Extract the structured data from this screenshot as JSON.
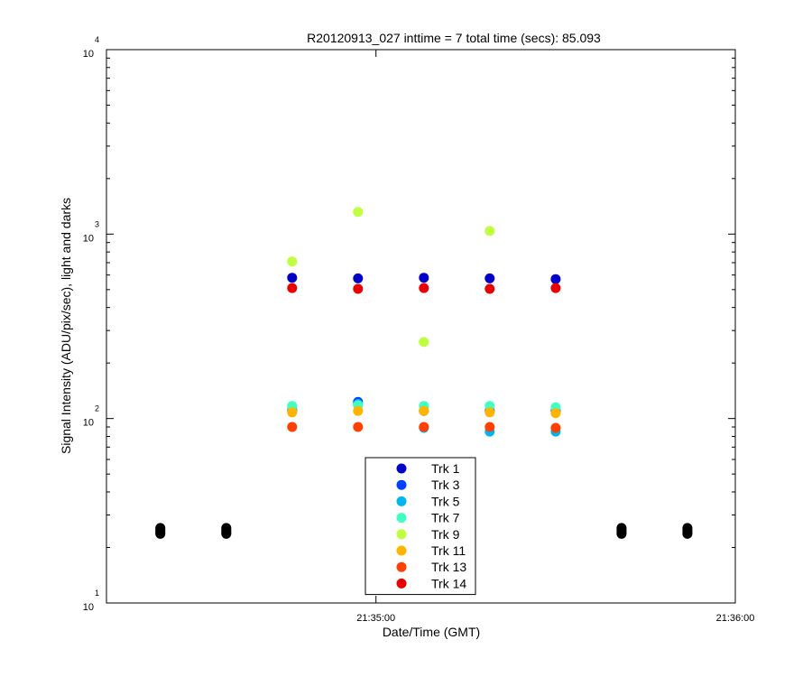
{
  "chart_data": {
    "type": "scatter",
    "title": "R20120913_027 inttime = 7 total time (secs): 85.093",
    "xlabel": "Date/Time (GMT)",
    "ylabel": "Signal Intensity (ADU/pix/sec), light and darks",
    "yscale": "log",
    "ylim": [
      10,
      10000
    ],
    "y_ticks": [
      {
        "base": "10",
        "exp": "1",
        "value": 10
      },
      {
        "base": "10",
        "exp": "2",
        "value": 100
      },
      {
        "base": "10",
        "exp": "3",
        "value": 1000
      },
      {
        "base": "10",
        "exp": "4",
        "value": 10000
      }
    ],
    "xlim": [
      "21:34:15",
      "21:36:00"
    ],
    "x_ticks": [
      "21:35:00",
      "21:36:00"
    ],
    "grid": false,
    "legend_position": "bottom-center",
    "series": [
      {
        "name": "Trk 1",
        "color": "#0000c8",
        "points": [
          [
            "21:34:46",
            580
          ],
          [
            "21:34:57",
            575
          ],
          [
            "21:35:08",
            580
          ],
          [
            "21:35:19",
            575
          ],
          [
            "21:35:30",
            570
          ]
        ]
      },
      {
        "name": "Trk 3",
        "color": "#0040ff",
        "points": [
          [
            "21:34:46",
            110
          ],
          [
            "21:34:57",
            123
          ],
          [
            "21:35:08",
            110
          ],
          [
            "21:35:19",
            110
          ],
          [
            "21:35:30",
            110
          ]
        ]
      },
      {
        "name": "Trk 5",
        "color": "#00b4f0",
        "points": [
          [
            "21:34:46",
            112
          ],
          [
            "21:34:57",
            120
          ],
          [
            "21:35:08",
            89
          ],
          [
            "21:35:19",
            85
          ],
          [
            "21:35:30",
            85
          ]
        ]
      },
      {
        "name": "Trk 7",
        "color": "#40ffc0",
        "points": [
          [
            "21:34:46",
            117
          ],
          [
            "21:34:57",
            118
          ],
          [
            "21:35:08",
            117
          ],
          [
            "21:35:19",
            117
          ],
          [
            "21:35:30",
            115
          ]
        ]
      },
      {
        "name": "Trk 9",
        "color": "#c0ff40",
        "points": [
          [
            "21:34:46",
            710
          ],
          [
            "21:34:57",
            1320
          ],
          [
            "21:35:08",
            260
          ],
          [
            "21:35:19",
            1040
          ]
        ]
      },
      {
        "name": "Trk 11",
        "color": "#ffb400",
        "points": [
          [
            "21:34:46",
            108
          ],
          [
            "21:34:57",
            110
          ],
          [
            "21:35:08",
            110
          ],
          [
            "21:35:19",
            108
          ],
          [
            "21:35:30",
            107
          ]
        ]
      },
      {
        "name": "Trk 13",
        "color": "#ff4000",
        "points": [
          [
            "21:34:46",
            90
          ],
          [
            "21:34:57",
            90
          ],
          [
            "21:35:08",
            90
          ],
          [
            "21:35:19",
            90
          ],
          [
            "21:35:30",
            89
          ]
        ]
      },
      {
        "name": "Trk 14",
        "color": "#e80000",
        "points": [
          [
            "21:34:46",
            510
          ],
          [
            "21:34:57",
            505
          ],
          [
            "21:35:08",
            510
          ],
          [
            "21:35:19",
            505
          ],
          [
            "21:35:30",
            510
          ]
        ]
      },
      {
        "color": "#000000",
        "points": [
          [
            "21:34:24",
            24.5
          ],
          [
            "21:34:24",
            25
          ],
          [
            "21:34:24",
            25.5
          ],
          [
            "21:34:24",
            24
          ],
          [
            "21:34:24",
            23.7
          ],
          [
            "21:34:35",
            24.5
          ],
          [
            "21:34:35",
            25
          ],
          [
            "21:34:35",
            25.5
          ],
          [
            "21:34:35",
            24
          ],
          [
            "21:34:35",
            23.7
          ],
          [
            "21:35:41",
            24.5
          ],
          [
            "21:35:41",
            25
          ],
          [
            "21:35:41",
            25.5
          ],
          [
            "21:35:41",
            24
          ],
          [
            "21:35:41",
            23.7
          ],
          [
            "21:35:52",
            24.5
          ],
          [
            "21:35:52",
            25
          ],
          [
            "21:35:52",
            25.5
          ],
          [
            "21:35:52",
            24
          ],
          [
            "21:35:52",
            23.7
          ]
        ]
      }
    ]
  }
}
